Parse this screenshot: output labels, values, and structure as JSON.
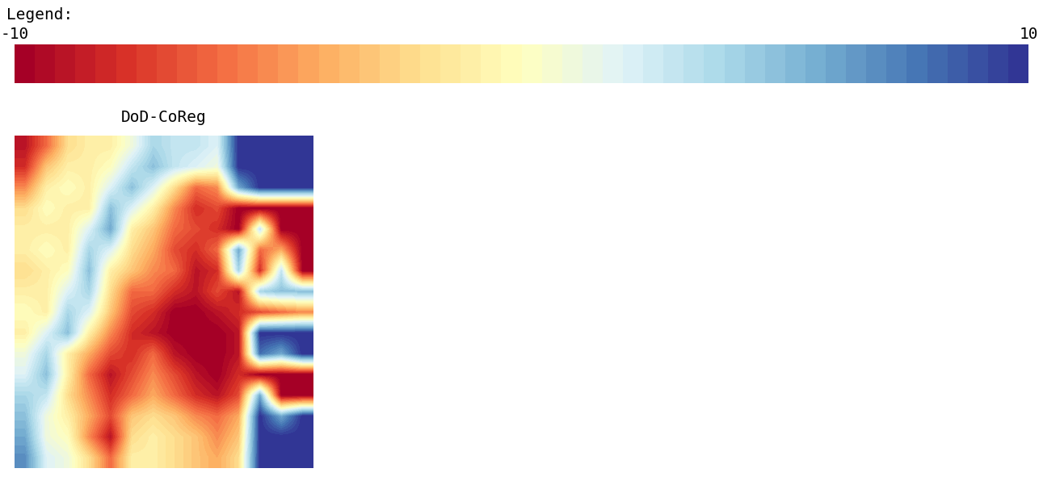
{
  "chart_data": {
    "type": "heatmap",
    "title": "DoD-CoReg",
    "colorbar_title": "Legend:",
    "color_range": [
      -10,
      10
    ],
    "color_ticks": [
      -10,
      10
    ],
    "tick_labels": false,
    "cells": [
      [
        -9,
        -6,
        -2,
        -1,
        -1,
        1,
        4,
        3,
        3,
        2,
        10,
        10,
        10,
        10
      ],
      [
        -8,
        -3,
        -1,
        -1,
        0,
        3,
        5,
        3,
        2,
        1,
        10,
        10,
        10,
        10
      ],
      [
        -5,
        -1,
        0,
        -1,
        2,
        5,
        2,
        -2,
        -6,
        -5,
        6,
        10,
        10,
        10
      ],
      [
        -2,
        0,
        -1,
        -1,
        5,
        2,
        -1,
        -5,
        -8,
        -7,
        -10,
        -10,
        -10,
        -10
      ],
      [
        -1,
        -1,
        -1,
        2,
        6,
        -1,
        -3,
        -6,
        -7,
        -8,
        -10,
        3,
        -10,
        -10
      ],
      [
        -1,
        0,
        -1,
        4,
        2,
        -2,
        -4,
        -7,
        -8,
        -6,
        6,
        -6,
        -4,
        -10
      ],
      [
        -2,
        -1,
        0,
        5,
        -1,
        -3,
        -5,
        -6,
        -9,
        -8,
        4,
        -8,
        3,
        -10
      ],
      [
        -1,
        -1,
        2,
        4,
        -2,
        -6,
        -6,
        -8,
        -9,
        -7,
        -9,
        4,
        5,
        5
      ],
      [
        0,
        -1,
        4,
        2,
        -3,
        -7,
        -8,
        -10,
        -10,
        -9,
        -8,
        -7,
        -6,
        -5
      ],
      [
        -1,
        2,
        5,
        -1,
        -5,
        -8,
        -9,
        -10,
        -10,
        -10,
        -9,
        10,
        10,
        10
      ],
      [
        1,
        4,
        -1,
        -4,
        -7,
        -8,
        -6,
        -9,
        -10,
        -10,
        -9,
        8,
        6,
        10
      ],
      [
        2,
        5,
        -1,
        -6,
        -9,
        -7,
        -5,
        -7,
        -9,
        -10,
        -8,
        -10,
        -10,
        -10
      ],
      [
        4,
        3,
        -2,
        -5,
        -8,
        -6,
        -4,
        -6,
        -8,
        -9,
        -7,
        6,
        -10,
        -10
      ],
      [
        5,
        1,
        -1,
        -4,
        -7,
        -3,
        -2,
        -3,
        -5,
        -6,
        -4,
        10,
        6,
        10
      ],
      [
        6,
        1,
        0,
        -5,
        -9,
        -2,
        -1,
        -2,
        -3,
        -5,
        -3,
        10,
        10,
        10
      ],
      [
        7,
        2,
        1,
        -2,
        -6,
        -1,
        -1,
        -2,
        -3,
        -4,
        -2,
        10,
        10,
        10
      ]
    ]
  }
}
